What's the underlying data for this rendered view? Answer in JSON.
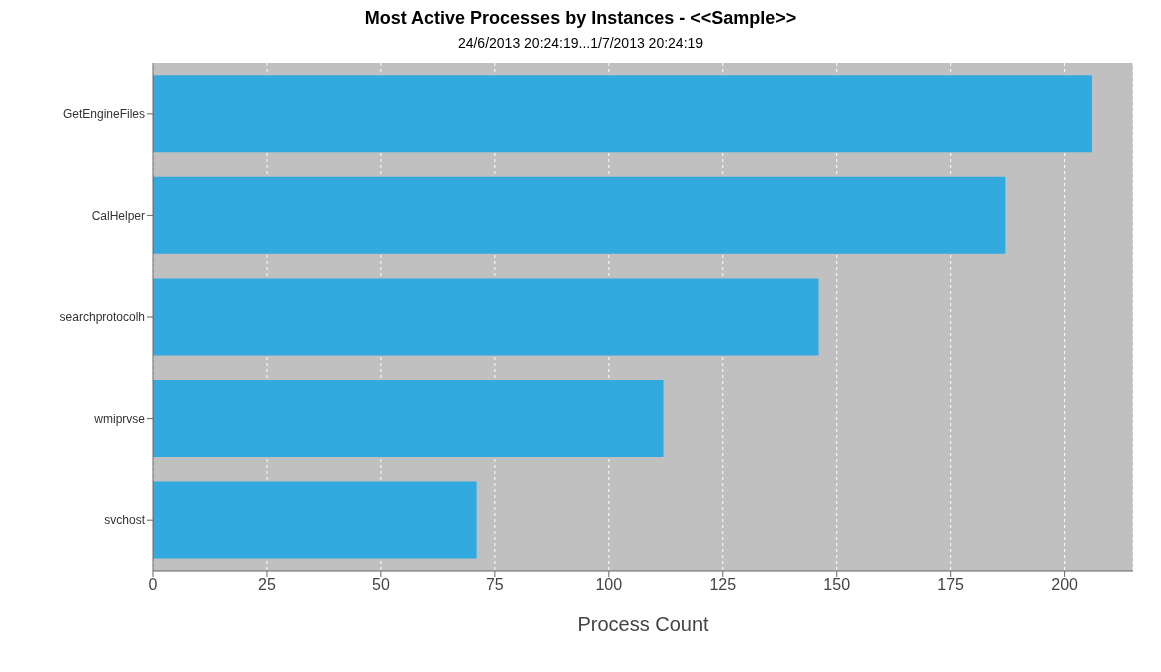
{
  "chart_data": {
    "type": "bar",
    "orientation": "horizontal",
    "title": "Most Active Processes by Instances - <<Sample>>",
    "subtitle": "24/6/2013 20:24:19...1/7/2013 20:24:19",
    "xlabel": "Process Count",
    "categories": [
      "GetEngineFiles",
      "CalHelper",
      "searchprotocolh",
      "wmiprvse",
      "svchost"
    ],
    "values": [
      206,
      187,
      146,
      112,
      71
    ],
    "color": "#33aadf",
    "xlim": [
      0,
      215
    ],
    "xticks": [
      0,
      25,
      50,
      75,
      100,
      125,
      150,
      175,
      200
    ],
    "grid": "x"
  }
}
